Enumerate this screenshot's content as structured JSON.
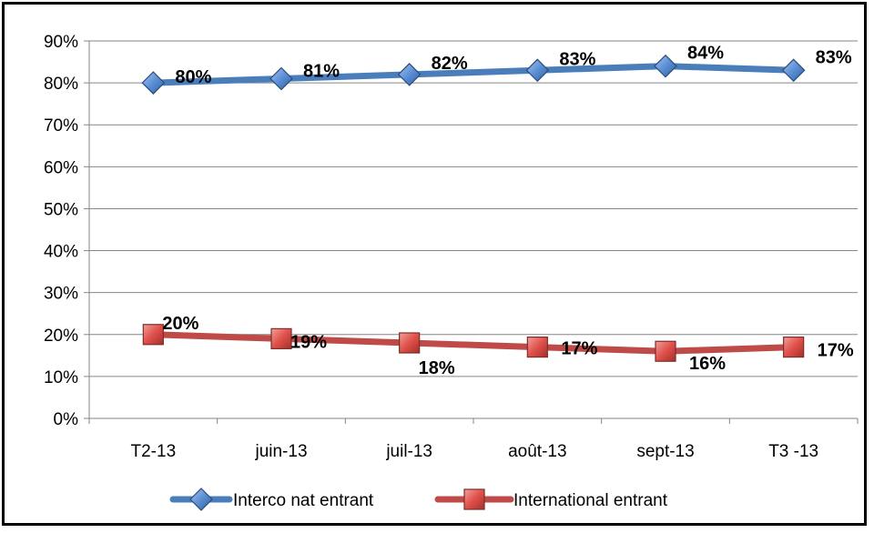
{
  "chart_data": {
    "type": "line",
    "categories": [
      "T2-13",
      "juin-13",
      "juil-13",
      "août-13",
      "sept-13",
      "T3 -13"
    ],
    "series": [
      {
        "name": "Interco nat entrant",
        "values": [
          80,
          81,
          82,
          83,
          84,
          83
        ],
        "labels": [
          "80%",
          "81%",
          "82%",
          "83%",
          "84%",
          "83%"
        ],
        "color": "#4a7ebb",
        "marker": "diamond"
      },
      {
        "name": "International entrant",
        "values": [
          20,
          19,
          18,
          17,
          16,
          17
        ],
        "labels": [
          "20%",
          "19%",
          "18%",
          "17%",
          "16%",
          "17%"
        ],
        "color": "#be4b48",
        "marker": "square"
      }
    ],
    "ylim": [
      0,
      90
    ],
    "yticks": [
      "0%",
      "10%",
      "20%",
      "30%",
      "40%",
      "50%",
      "60%",
      "70%",
      "80%",
      "90%"
    ],
    "grid": true,
    "legend_position": "bottom"
  }
}
